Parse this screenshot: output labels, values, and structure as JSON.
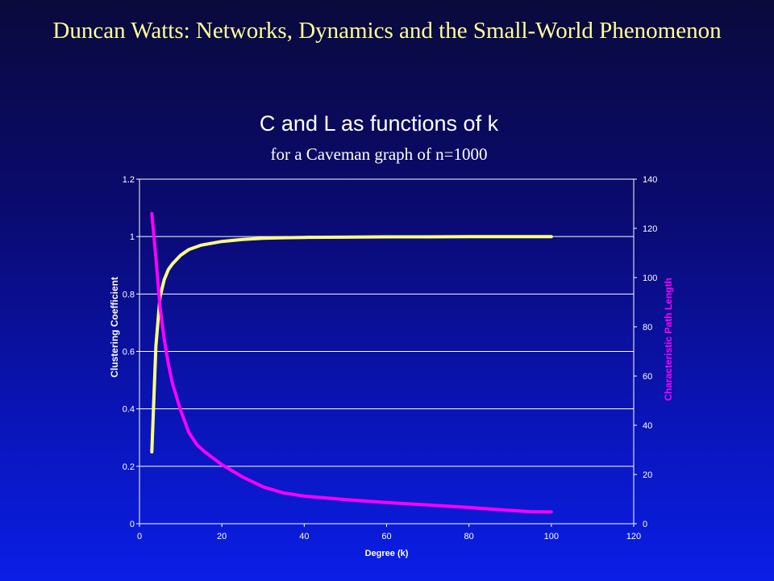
{
  "slide_title": "Duncan Watts: Networks, Dynamics and the Small-World Phenomenon",
  "colors": {
    "background_top": "#0a0a3c",
    "background_bottom": "#0a1ee6",
    "title": "#ffff99",
    "axis_text": "#ffffff",
    "grid": "#ffffff"
  },
  "chart_data": {
    "type": "line",
    "title": "C and L as functions of k",
    "subtitle": "for a Caveman graph of n=1000",
    "xlabel": "Degree (k)",
    "ylabel": "Clustering Coefficient",
    "y2label": "Characteristic Path Length",
    "xlim": [
      0,
      120
    ],
    "ylim": [
      0,
      1.2
    ],
    "y2lim": [
      0,
      140
    ],
    "xticks": [
      "0",
      "20",
      "40",
      "60",
      "80",
      "100",
      "120"
    ],
    "yticks": [
      "0",
      "0.2",
      "0.4",
      "0.6",
      "0.8",
      "1",
      "1.2"
    ],
    "y2ticks": [
      "0",
      "20",
      "40",
      "60",
      "80",
      "100",
      "120",
      "140"
    ],
    "grid": true,
    "series": [
      {
        "axis": "left",
        "color": "#ffff80",
        "x": [
          3,
          4,
          5,
          6,
          7,
          8,
          10,
          12,
          15,
          20,
          25,
          30,
          35,
          40,
          50,
          60,
          70,
          80,
          90,
          100
        ],
        "y": [
          0.25,
          0.62,
          0.79,
          0.85,
          0.885,
          0.905,
          0.935,
          0.955,
          0.97,
          0.983,
          0.99,
          0.994,
          0.996,
          0.997,
          0.998,
          0.999,
          0.999,
          1.0,
          1.0,
          1.0
        ]
      },
      {
        "axis": "right",
        "color": "#ff00ff",
        "x": [
          3,
          4,
          5,
          6,
          7,
          8,
          10,
          12,
          14,
          16,
          20,
          25,
          30,
          35,
          40,
          50,
          60,
          70,
          80,
          90,
          95,
          100
        ],
        "y": [
          126,
          108,
          88,
          75,
          65,
          57,
          46,
          37,
          32,
          29,
          24,
          19,
          15,
          12.5,
          11.2,
          9.8,
          8.6,
          7.6,
          6.6,
          5.4,
          4.9,
          4.8
        ]
      }
    ]
  }
}
